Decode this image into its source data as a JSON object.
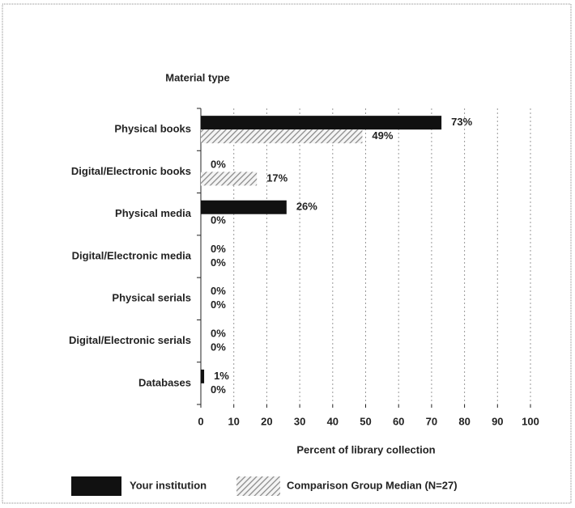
{
  "chart_data": {
    "type": "bar",
    "orientation": "horizontal",
    "y_axis_label": "Material type",
    "x_axis_label": "Percent of library collection",
    "categories": [
      "Physical books",
      "Digital/Electronic books",
      "Physical media",
      "Digital/Electronic media",
      "Physical serials",
      "Digital/Electronic serials",
      "Databases"
    ],
    "series": [
      {
        "name": "Your institution",
        "color": "#111111",
        "values": [
          73,
          0,
          26,
          0,
          0,
          0,
          1
        ],
        "value_labels": [
          "73%",
          "0%",
          "26%",
          "0%",
          "0%",
          "0%",
          "1%"
        ]
      },
      {
        "name": "Comparison Group Median (N=27)",
        "color": "#888888",
        "pattern": "hatch",
        "values": [
          49,
          17,
          0,
          0,
          0,
          0,
          0
        ],
        "value_labels": [
          "49%",
          "17%",
          "0%",
          "0%",
          "0%",
          "0%",
          "0%"
        ]
      }
    ],
    "xlim": [
      0,
      100
    ],
    "xticks": [
      0,
      10,
      20,
      30,
      40,
      50,
      60,
      70,
      80,
      90,
      100
    ],
    "grid": true,
    "legend": "bottom"
  }
}
